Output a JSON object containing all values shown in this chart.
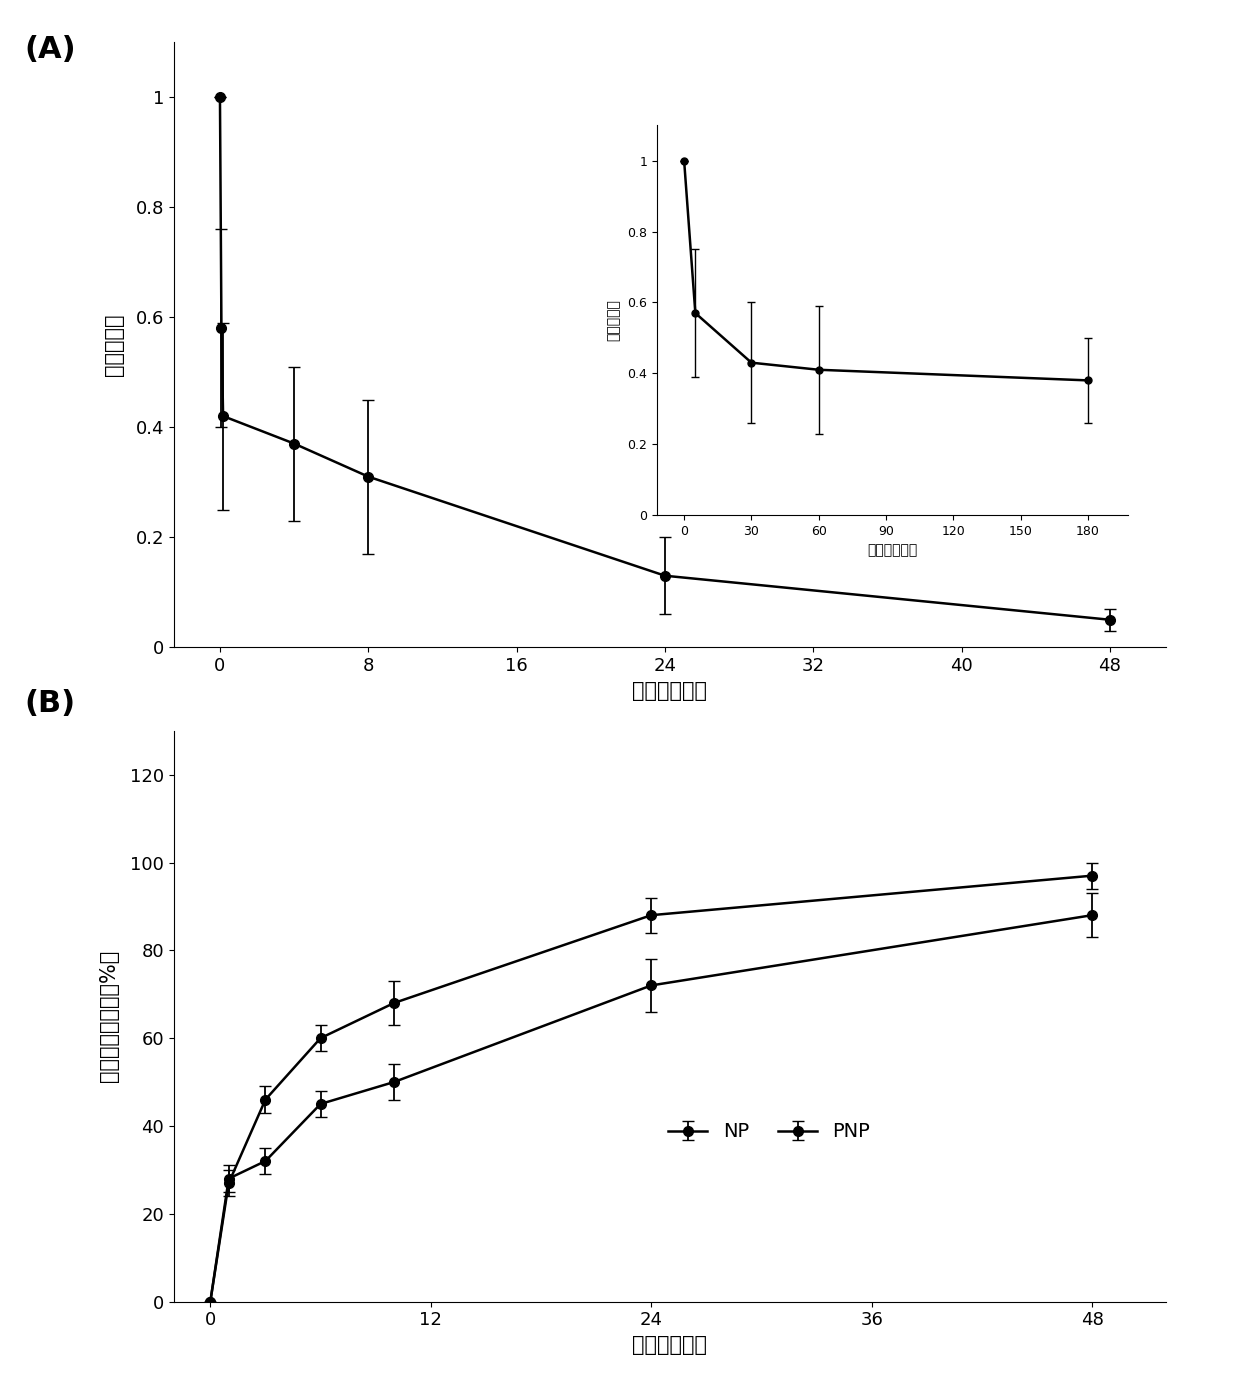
{
  "panel_A": {
    "title": "(A)",
    "ylabel": "归一化荧光",
    "xlabel": "时间（小时）",
    "x": [
      0,
      0.08,
      0.17,
      4,
      8,
      24,
      48
    ],
    "y": [
      1.0,
      0.58,
      0.42,
      0.37,
      0.31,
      0.13,
      0.05
    ],
    "yerr": [
      0.0,
      0.18,
      0.17,
      0.14,
      0.14,
      0.07,
      0.02
    ],
    "xlim": [
      -2.5,
      51
    ],
    "ylim": [
      0,
      1.1
    ],
    "xticks": [
      0,
      8,
      16,
      24,
      32,
      40,
      48
    ],
    "ytick_vals": [
      0,
      0.2,
      0.4,
      0.6,
      0.8,
      1.0
    ],
    "ytick_labels": [
      "0",
      "0.2",
      "0.4",
      "0.6",
      "0.8",
      "1"
    ],
    "inset": {
      "ylabel": "归一化荧光",
      "xlabel": "时间（分钟）",
      "x": [
        0,
        5,
        30,
        60,
        180
      ],
      "y": [
        1.0,
        0.57,
        0.43,
        0.41,
        0.38
      ],
      "yerr": [
        0.0,
        0.18,
        0.17,
        0.18,
        0.12
      ],
      "xlim": [
        -12,
        198
      ],
      "ylim": [
        0,
        1.1
      ],
      "xticks": [
        0,
        30,
        60,
        90,
        120,
        150,
        180
      ],
      "ytick_vals": [
        0,
        0.2,
        0.4,
        0.6,
        0.8,
        1.0
      ],
      "ytick_labels": [
        "0",
        "0.2",
        "0.4",
        "0.6",
        "0.8",
        "1"
      ]
    }
  },
  "panel_B": {
    "title": "(B)",
    "ylabel": "雷帕霉素释放率（%）",
    "xlabel": "时间（小时）",
    "NP": {
      "x": [
        0,
        1,
        3,
        6,
        10,
        24,
        48
      ],
      "y": [
        0,
        27,
        46,
        60,
        68,
        88,
        97
      ],
      "yerr": [
        0,
        3,
        3,
        3,
        5,
        4,
        3
      ]
    },
    "PNP": {
      "x": [
        0,
        1,
        3,
        6,
        10,
        24,
        48
      ],
      "y": [
        0,
        28,
        32,
        45,
        50,
        72,
        88
      ],
      "yerr": [
        0,
        3,
        3,
        3,
        4,
        6,
        5
      ]
    },
    "xlim": [
      -2,
      52
    ],
    "ylim": [
      0,
      130
    ],
    "xticks": [
      0,
      12,
      24,
      36,
      48
    ],
    "ytick_vals": [
      0,
      20,
      40,
      60,
      80,
      100,
      120
    ],
    "ytick_labels": [
      "0",
      "20",
      "40",
      "60",
      "80",
      "100",
      "120"
    ]
  },
  "line_color": "#000000",
  "marker": "o",
  "markersize": 7,
  "linewidth": 1.8,
  "fontsize_label": 15,
  "fontsize_tick": 13,
  "fontsize_title": 22,
  "fontsize_legend": 14,
  "capsize": 4,
  "elinewidth": 1.3
}
